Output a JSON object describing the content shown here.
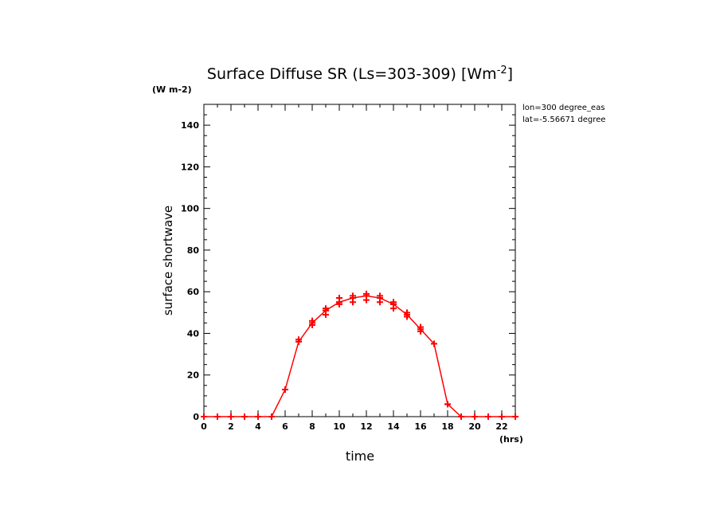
{
  "chart_data": {
    "type": "line",
    "title": "Surface Diffuse SR (Ls=303-309) [Wm^-2]",
    "title_parts": {
      "main": "Surface Diffuse SR (Ls=303-309) [Wm",
      "sup": "-2",
      "tail": "]"
    },
    "yunits": "(W m-2)",
    "xunits": "(hrs)",
    "xlabel": "time",
    "ylabel": "surface shortwave",
    "annotations": [
      "lon=300 degree_eas",
      "lat=-5.56671 degree"
    ],
    "xlim": [
      0,
      23
    ],
    "ylim": [
      0,
      150
    ],
    "xticks": [
      "0",
      "2",
      "4",
      "6",
      "8",
      "10",
      "12",
      "14",
      "16",
      "18",
      "20",
      "22"
    ],
    "yticks": [
      "0",
      "20",
      "40",
      "60",
      "80",
      "100",
      "120",
      "140"
    ],
    "series_color": "#ff0000",
    "line": {
      "x": [
        0,
        1,
        2,
        3,
        4,
        5,
        6,
        7,
        8,
        9,
        10,
        11,
        12,
        13,
        14,
        15,
        16,
        17,
        18,
        19,
        20,
        21,
        22,
        23
      ],
      "y": [
        0,
        0,
        0,
        0,
        0,
        0,
        13,
        36,
        45,
        51,
        55,
        57,
        58,
        57,
        54,
        49,
        42,
        35,
        6,
        0,
        0,
        0,
        0,
        0
      ]
    },
    "samples": {
      "x": [
        6,
        7,
        7,
        8,
        8,
        9,
        9,
        9,
        10,
        10,
        10,
        11,
        11,
        11,
        12,
        12,
        12,
        13,
        13,
        13,
        14,
        14,
        14,
        15,
        15,
        16,
        16,
        17,
        18
      ],
      "y": [
        13,
        36,
        37,
        44,
        46,
        49,
        51,
        52,
        54,
        55,
        57,
        55,
        57,
        58,
        56,
        58,
        59,
        55,
        57,
        58,
        52,
        54,
        55,
        48,
        50,
        41,
        43,
        35,
        6
      ]
    }
  }
}
